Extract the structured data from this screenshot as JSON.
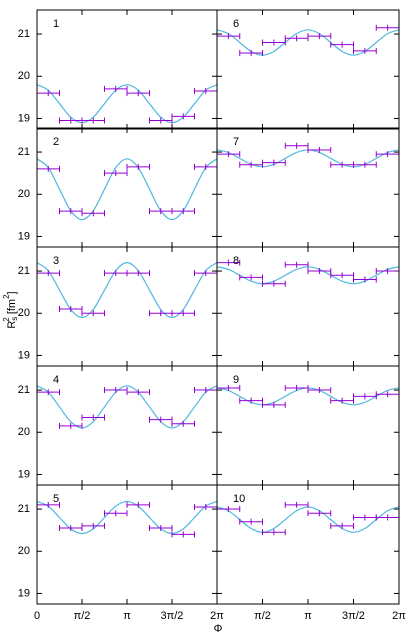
{
  "chart_data": [
    {
      "type": "scatter",
      "title": "1",
      "ylim": [
        18.75,
        21.57
      ],
      "yticks": [
        19,
        20,
        21
      ],
      "color": "#9400d3",
      "fit_color": "#4fb8e0",
      "x": [
        0.3927,
        1.1781,
        1.9635,
        2.7489,
        3.5343,
        4.3197,
        5.1051,
        5.8905
      ],
      "xerr": 0.3927,
      "values": [
        19.6,
        18.95,
        18.95,
        19.7,
        19.6,
        18.95,
        19.05,
        19.65
      ],
      "fit_x": [
        0,
        0.3927,
        0.7854,
        1.1781,
        1.5708,
        1.9635,
        2.3562,
        2.7489,
        3.1416,
        3.5343,
        3.927,
        4.3197,
        4.7124,
        5.1051,
        5.4978,
        5.8905,
        6.2832
      ],
      "fit_values": [
        19.8,
        19.67,
        19.35,
        19.03,
        18.9,
        19.03,
        19.35,
        19.67,
        19.8,
        19.67,
        19.35,
        19.03,
        18.9,
        19.03,
        19.35,
        19.67,
        19.8
      ]
    },
    {
      "type": "scatter",
      "title": "2",
      "ylim": [
        18.75,
        21.57
      ],
      "yticks": [
        19,
        20,
        21
      ],
      "color": "#9400d3",
      "fit_color": "#4fb8e0",
      "x": [
        0.3927,
        1.1781,
        1.9635,
        2.7489,
        3.5343,
        4.3197,
        5.1051,
        5.8905
      ],
      "xerr": 0.3927,
      "values": [
        20.6,
        19.6,
        19.55,
        20.5,
        20.65,
        19.6,
        19.6,
        20.65
      ],
      "fit_x": [
        0,
        0.3927,
        0.7854,
        1.1781,
        1.5708,
        1.9635,
        2.3562,
        2.7489,
        3.1416,
        3.5343,
        3.927,
        4.3197,
        4.7124,
        5.1051,
        5.4978,
        5.8905,
        6.2832
      ],
      "fit_values": [
        20.84,
        20.63,
        20.12,
        19.61,
        19.4,
        19.61,
        20.12,
        20.63,
        20.84,
        20.63,
        20.12,
        19.61,
        19.4,
        19.61,
        20.12,
        20.63,
        20.84
      ]
    },
    {
      "type": "scatter",
      "title": "3",
      "ylim": [
        18.75,
        21.57
      ],
      "yticks": [
        19,
        20,
        21
      ],
      "color": "#9400d3",
      "fit_color": "#4fb8e0",
      "ylabel": {
        "base": "R",
        "sub": "s",
        "sup": "2",
        "unit": " [fm",
        "unit_sup": "2",
        "close": "]"
      },
      "x": [
        0.3927,
        1.1781,
        1.9635,
        2.7489,
        3.5343,
        4.3197,
        5.1051,
        5.8905
      ],
      "xerr": 0.3927,
      "values": [
        20.95,
        20.1,
        20.0,
        20.95,
        20.95,
        20.0,
        20.0,
        20.95
      ],
      "fit_x": [
        0,
        0.3927,
        0.7854,
        1.1781,
        1.5708,
        1.9635,
        2.3562,
        2.7489,
        3.1416,
        3.5343,
        3.927,
        4.3197,
        4.7124,
        5.1051,
        5.4978,
        5.8905,
        6.2832
      ],
      "fit_values": [
        21.2,
        21.01,
        20.55,
        20.09,
        19.9,
        20.09,
        20.55,
        21.01,
        21.2,
        21.01,
        20.55,
        20.09,
        19.9,
        20.09,
        20.55,
        21.01,
        21.2
      ]
    },
    {
      "type": "scatter",
      "title": "4",
      "ylim": [
        18.75,
        21.57
      ],
      "yticks": [
        19,
        20,
        21
      ],
      "color": "#9400d3",
      "fit_color": "#4fb8e0",
      "x": [
        0.3927,
        1.1781,
        1.9635,
        2.7489,
        3.5343,
        4.3197,
        5.1051,
        5.8905
      ],
      "xerr": 0.3927,
      "values": [
        20.95,
        20.15,
        20.35,
        21.0,
        20.95,
        20.3,
        20.2,
        21.0
      ],
      "fit_x": [
        0,
        0.3927,
        0.7854,
        1.1781,
        1.5708,
        1.9635,
        2.3562,
        2.7489,
        3.1416,
        3.5343,
        3.927,
        4.3197,
        4.7124,
        5.1051,
        5.4978,
        5.8905,
        6.2832
      ],
      "fit_values": [
        21.1,
        20.95,
        20.6,
        20.25,
        20.1,
        20.25,
        20.6,
        20.95,
        21.1,
        20.95,
        20.6,
        20.25,
        20.1,
        20.25,
        20.6,
        20.95,
        21.1
      ]
    },
    {
      "type": "scatter",
      "title": "5",
      "ylim": [
        18.75,
        21.57
      ],
      "yticks": [
        19,
        20,
        21
      ],
      "color": "#9400d3",
      "fit_color": "#4fb8e0",
      "xlabel": "Φ",
      "xlim": [
        0,
        6.2832
      ],
      "xticks": [
        0,
        {
          "value": 1.5708,
          "label": "π/2"
        },
        {
          "value": 3.1416,
          "label": "π"
        },
        {
          "value": 4.7124,
          "label": "3π/2"
        },
        {
          "value": 6.2832,
          "label": "2π"
        }
      ],
      "x": [
        0.3927,
        1.1781,
        1.9635,
        2.7489,
        3.5343,
        4.3197,
        5.1051,
        5.8905
      ],
      "xerr": 0.3927,
      "values": [
        21.1,
        20.55,
        20.6,
        20.9,
        21.1,
        20.55,
        20.4,
        21.05
      ],
      "fit_x": [
        0,
        0.3927,
        0.7854,
        1.1781,
        1.5708,
        1.9635,
        2.3562,
        2.7489,
        3.1416,
        3.5343,
        3.927,
        4.3197,
        4.7124,
        5.1051,
        5.4978,
        5.8905,
        6.2832
      ],
      "fit_values": [
        21.18,
        21.07,
        20.8,
        20.53,
        20.42,
        20.53,
        20.8,
        21.07,
        21.18,
        21.07,
        20.8,
        20.53,
        20.42,
        20.53,
        20.8,
        21.07,
        21.18
      ]
    },
    {
      "type": "scatter",
      "title": "6",
      "color": "#9400d3",
      "fit_color": "#4fb8e0",
      "x": [
        0.3927,
        1.1781,
        1.9635,
        2.7489,
        3.5343,
        4.3197,
        5.1051,
        5.8905
      ],
      "xerr": 0.3927,
      "values": [
        20.95,
        20.55,
        20.8,
        20.9,
        20.95,
        20.75,
        20.6,
        21.15
      ],
      "fit_x": [
        0,
        0.3927,
        0.7854,
        1.1781,
        1.5708,
        1.9635,
        2.3562,
        2.7489,
        3.1416,
        3.5343,
        3.927,
        4.3197,
        4.7124,
        5.1051,
        5.4978,
        5.8905,
        6.2832
      ],
      "fit_values": [
        21.1,
        21.01,
        20.8,
        20.59,
        20.5,
        20.59,
        20.8,
        21.01,
        21.1,
        21.01,
        20.8,
        20.59,
        20.5,
        20.59,
        20.8,
        21.01,
        21.1
      ]
    },
    {
      "type": "scatter",
      "title": "7",
      "color": "#9400d3",
      "fit_color": "#4fb8e0",
      "x": [
        0.3927,
        1.1781,
        1.9635,
        2.7489,
        3.5343,
        4.3197,
        5.1051,
        5.8905
      ],
      "xerr": 0.3927,
      "values": [
        20.95,
        20.7,
        20.75,
        21.15,
        21.05,
        20.7,
        20.7,
        20.95
      ],
      "fit_x": [
        0,
        0.3927,
        0.7854,
        1.1781,
        1.5708,
        1.9635,
        2.3562,
        2.7489,
        3.1416,
        3.5343,
        3.927,
        4.3197,
        4.7124,
        5.1051,
        5.4978,
        5.8905,
        6.2832
      ],
      "fit_values": [
        21.05,
        20.99,
        20.85,
        20.71,
        20.65,
        20.71,
        20.85,
        20.99,
        21.05,
        20.99,
        20.85,
        20.71,
        20.65,
        20.71,
        20.85,
        20.99,
        21.05
      ]
    },
    {
      "type": "scatter",
      "title": "8",
      "color": "#9400d3",
      "fit_color": "#4fb8e0",
      "x": [
        0.3927,
        1.1781,
        1.9635,
        2.7489,
        3.5343,
        4.3197,
        5.1051,
        5.8905
      ],
      "xerr": 0.3927,
      "values": [
        21.2,
        20.85,
        20.7,
        21.15,
        21.0,
        20.9,
        20.8,
        21.0
      ],
      "fit_x": [
        0,
        0.3927,
        0.7854,
        1.1781,
        1.5708,
        1.9635,
        2.3562,
        2.7489,
        3.1416,
        3.5343,
        3.927,
        4.3197,
        4.7124,
        5.1051,
        5.4978,
        5.8905,
        6.2832
      ],
      "fit_values": [
        21.1,
        21.04,
        20.9,
        20.76,
        20.7,
        20.76,
        20.9,
        21.04,
        21.1,
        21.04,
        20.9,
        20.76,
        20.7,
        20.76,
        20.9,
        21.04,
        21.1
      ]
    },
    {
      "type": "scatter",
      "title": "9",
      "color": "#9400d3",
      "fit_color": "#4fb8e0",
      "x": [
        0.3927,
        1.1781,
        1.9635,
        2.7489,
        3.5343,
        4.3197,
        5.1051,
        5.8905
      ],
      "xerr": 0.3927,
      "values": [
        21.05,
        20.75,
        20.65,
        21.05,
        21.0,
        20.75,
        20.85,
        20.9
      ],
      "fit_x": [
        0,
        0.3927,
        0.7854,
        1.1781,
        1.5708,
        1.9635,
        2.3562,
        2.7489,
        3.1416,
        3.5343,
        3.927,
        4.3197,
        4.7124,
        5.1051,
        5.4978,
        5.8905,
        6.2832
      ],
      "fit_values": [
        21.05,
        20.99,
        20.85,
        20.71,
        20.65,
        20.71,
        20.85,
        20.99,
        21.05,
        20.99,
        20.85,
        20.71,
        20.65,
        20.71,
        20.85,
        20.99,
        21.05
      ]
    },
    {
      "type": "scatter",
      "title": "10",
      "color": "#9400d3",
      "fit_color": "#4fb8e0",
      "xlim": [
        0,
        6.2832
      ],
      "xticks": [
        0,
        {
          "value": 1.5708,
          "label": "π/2"
        },
        {
          "value": 3.1416,
          "label": "π"
        },
        {
          "value": 4.7124,
          "label": "3π/2"
        },
        {
          "value": 6.2832,
          "label": "2π"
        }
      ],
      "x": [
        0.3927,
        1.1781,
        1.9635,
        2.7489,
        3.5343,
        4.3197,
        5.1051,
        5.8905
      ],
      "xerr": 0.3927,
      "values": [
        21.0,
        20.7,
        20.45,
        21.1,
        20.9,
        20.6,
        20.8,
        20.8
      ],
      "fit_x": [
        0,
        0.3927,
        0.7854,
        1.1781,
        1.5708,
        1.9635,
        2.3562,
        2.7489,
        3.1416,
        3.5343,
        3.927,
        4.3197,
        4.7124,
        5.1051,
        5.4978,
        5.8905,
        6.2832
      ],
      "fit_values": [
        21.05,
        20.96,
        20.75,
        20.54,
        20.45,
        20.54,
        20.75,
        20.96,
        21.05,
        20.96,
        20.75,
        20.54,
        20.45,
        20.54,
        20.75,
        20.96,
        21.05
      ]
    }
  ]
}
